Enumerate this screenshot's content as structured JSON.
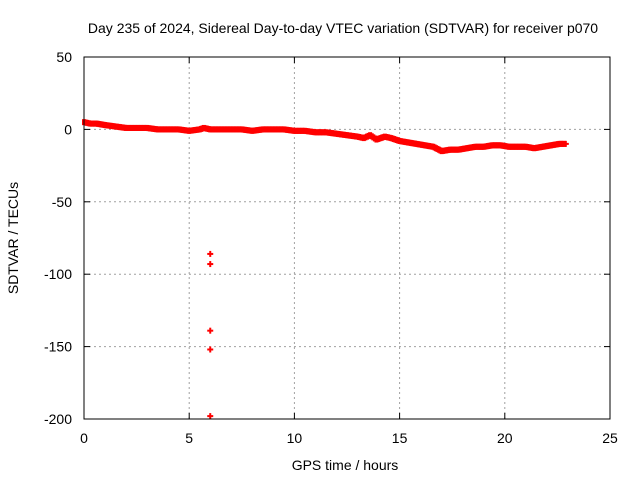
{
  "chart_data": {
    "type": "scatter",
    "title": "Day 235 of 2024, Sidereal Day-to-day VTEC variation (SDTVAR) for receiver p070",
    "xlabel": "GPS time / hours",
    "ylabel": "SDTVAR / TECUs",
    "xlim": [
      0,
      25
    ],
    "ylim": [
      -200,
      50
    ],
    "xticks": [
      "0",
      "5",
      "10",
      "15",
      "20",
      "25"
    ],
    "yticks": [
      "50",
      "0",
      "-50",
      "-100",
      "-150",
      "-200"
    ],
    "grid": true,
    "marker": "+",
    "color": "#ff0000",
    "series": [
      {
        "name": "SDTVAR",
        "x": [
          0.0,
          0.3,
          0.6,
          1.0,
          1.5,
          2.0,
          2.5,
          3.0,
          3.5,
          4.0,
          4.5,
          5.0,
          5.5,
          5.7,
          6.0,
          6.5,
          7.0,
          7.5,
          8.0,
          8.5,
          9.0,
          9.5,
          10.0,
          10.5,
          11.0,
          11.5,
          12.0,
          12.5,
          13.0,
          13.3,
          13.6,
          13.9,
          14.1,
          14.3,
          14.6,
          15.0,
          15.4,
          15.8,
          16.2,
          16.6,
          17.0,
          17.4,
          17.8,
          18.2,
          18.6,
          19.0,
          19.4,
          19.8,
          20.2,
          20.6,
          21.0,
          21.4,
          21.8,
          22.2,
          22.6,
          22.9,
          6.0,
          6.0,
          6.0,
          6.0,
          6.0
        ],
        "y": [
          5,
          4,
          4,
          3,
          2,
          1,
          1,
          1,
          0,
          0,
          0,
          -1,
          0,
          1,
          0,
          0,
          0,
          0,
          -1,
          0,
          0,
          0,
          -1,
          -1,
          -2,
          -2,
          -3,
          -4,
          -5,
          -6,
          -4,
          -7,
          -6,
          -5,
          -6,
          -8,
          -9,
          -10,
          -11,
          -12,
          -15,
          -14,
          -14,
          -13,
          -12,
          -12,
          -11,
          -11,
          -12,
          -12,
          -12,
          -13,
          -12,
          -11,
          -10,
          -10,
          -86,
          -93,
          -139,
          -152,
          -198
        ]
      }
    ]
  }
}
